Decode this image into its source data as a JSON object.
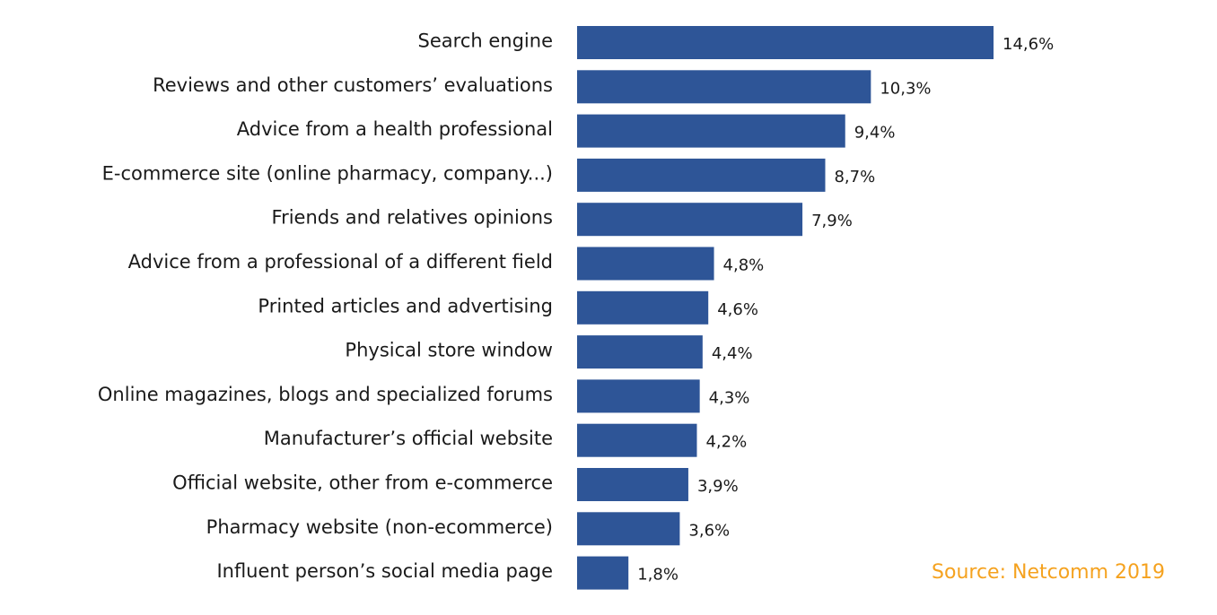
{
  "chart_data": {
    "type": "bar",
    "orientation": "horizontal",
    "categories": [
      "Search engine",
      "Reviews and other customers’ evaluations",
      "Advice from a health professional",
      "E-commerce site (online pharmacy, company...)",
      "Friends and relatives opinions",
      "Advice from a professional of a different field",
      "Printed articles and advertising",
      "Physical store window",
      "Online magazines, blogs and specialized forums",
      "Manufacturer’s official website",
      "Official website, other from e-commerce",
      "Pharmacy website (non-ecommerce)",
      "Influent person’s social media page"
    ],
    "values": [
      14.6,
      10.3,
      9.4,
      8.7,
      7.9,
      4.8,
      4.6,
      4.4,
      4.3,
      4.2,
      3.9,
      3.6,
      1.8
    ],
    "value_labels": [
      "14,6%",
      "10,3%",
      "9,4%",
      "8,7%",
      "7,9%",
      "4,8%",
      "4,6%",
      "4,4%",
      "4,3%",
      "4,2%",
      "3,9%",
      "3,6%",
      "1,8%"
    ],
    "unit": "%",
    "xlim": [
      0,
      14.6
    ],
    "grid": false,
    "legend": "none",
    "bar_color": "#2e5597"
  },
  "source": "Source: Netcomm 2019",
  "colors": {
    "bar": "#2e5597",
    "source": "#f5a21f",
    "text": "#1a1a1a"
  }
}
